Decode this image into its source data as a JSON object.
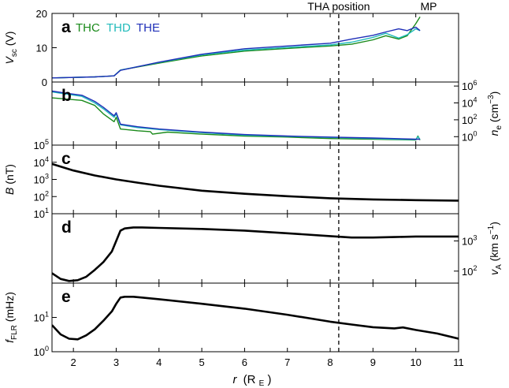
{
  "chart_data": {
    "type": "line",
    "x_axis": {
      "label_prefix": "r",
      "label_unit": "(R",
      "label_unit_sub": "E",
      "label_unit_close": ")",
      "range": [
        1.5,
        11
      ],
      "ticks": [
        2,
        3,
        4,
        5,
        6,
        7,
        8,
        9,
        10,
        11
      ]
    },
    "annotations": {
      "tha_label": "THA position",
      "tha_r": 8.2,
      "mp_label": "MP",
      "mp_r": 10.3
    },
    "legend": [
      {
        "name": "THC",
        "color": "#1a8a1a"
      },
      {
        "name": "THD",
        "color": "#22bbbb"
      },
      {
        "name": "THE",
        "color": "#1f2fb8"
      }
    ],
    "panels": [
      {
        "letter": "a",
        "ylabel_main": "V",
        "ylabel_sub": "sc",
        "ylabel_rest": " (V)",
        "scale": "linear",
        "ylim": [
          0,
          20
        ],
        "left_ticks": [
          "0",
          "10",
          "20"
        ],
        "left_tick_values": [
          0,
          10,
          20
        ],
        "series": [
          {
            "name": "THC",
            "color": "#1a8a1a",
            "x": [
              1.5,
              2.5,
              2.95,
              3.1,
              4,
              5,
              6,
              7,
              8,
              8.5,
              9,
              9.3,
              9.6,
              9.8,
              10,
              10.1
            ],
            "y": [
              1.2,
              1.5,
              1.8,
              3.5,
              5.5,
              7.6,
              9,
              9.8,
              10.5,
              11,
              12.3,
              13.5,
              12.5,
              13.5,
              17,
              19
            ]
          },
          {
            "name": "THD",
            "color": "#22bbbb",
            "x": [
              1.5,
              2.5,
              2.95,
              3.1,
              4,
              5,
              6,
              7,
              8,
              8.5,
              9,
              9.3,
              9.6,
              9.8,
              10,
              10.1
            ],
            "y": [
              1.2,
              1.5,
              1.8,
              3.5,
              5.7,
              7.9,
              9.3,
              10.1,
              10.8,
              11.6,
              13,
              14.2,
              12.8,
              13.8,
              15.5,
              15
            ]
          },
          {
            "name": "THE",
            "color": "#1f2fb8",
            "x": [
              1.5,
              2.5,
              2.95,
              3.1,
              4,
              5,
              6,
              7,
              8,
              8.5,
              9,
              9.3,
              9.6,
              9.8,
              10,
              10.1
            ],
            "y": [
              1.2,
              1.5,
              1.8,
              3.4,
              5.8,
              8.1,
              9.7,
              10.5,
              11.3,
              12.5,
              13.6,
              14.6,
              15.5,
              15,
              16,
              15
            ]
          }
        ]
      },
      {
        "letter": "b",
        "ylabel_right_main": "n",
        "ylabel_right_sub": "e",
        "ylabel_right_rest": " (cm",
        "ylabel_right_sup": "−3",
        "ylabel_right_close": ")",
        "scale": "log",
        "ylim": [
          0.1,
          3000000
        ],
        "right_ticks": [
          {
            "value": 1,
            "base": "10",
            "exp": "0"
          },
          {
            "value": 100,
            "base": "10",
            "exp": "2"
          },
          {
            "value": 10000,
            "base": "10",
            "exp": "4"
          },
          {
            "value": 1000000,
            "base": "10",
            "exp": "6"
          }
        ],
        "series": [
          {
            "name": "THC",
            "color": "#1a8a1a",
            "x": [
              1.5,
              1.8,
              2.2,
              2.5,
              2.7,
              2.95,
              3.0,
              3.1,
              3.5,
              3.8,
              3.85,
              4.2,
              5,
              6,
              7,
              8,
              9,
              9.5,
              10,
              10.05,
              10.1
            ],
            "y": [
              40000,
              30000,
              20000,
              5000,
              500,
              60,
              200,
              8,
              5,
              4,
              2,
              3.5,
              2,
              1.2,
              0.9,
              0.6,
              0.5,
              0.45,
              0.4,
              1.2,
              0.4
            ]
          },
          {
            "name": "THD",
            "color": "#22bbbb",
            "x": [
              1.5,
              1.8,
              2.2,
              2.5,
              2.7,
              2.95,
              3.0,
              3.1,
              3.5,
              4,
              5,
              6,
              7,
              8,
              9,
              9.5,
              10,
              10.05,
              10.1
            ],
            "y": [
              200000,
              120000,
              60000,
              10000,
              2000,
              200,
              500,
              25,
              12,
              7,
              3,
              1.5,
              1.1,
              0.8,
              0.6,
              0.5,
              0.45,
              1,
              0.45
            ]
          },
          {
            "name": "THE",
            "color": "#1f2fb8",
            "x": [
              1.5,
              1.8,
              2.2,
              2.5,
              2.7,
              2.95,
              3.0,
              3.1,
              3.5,
              4,
              5,
              6,
              7,
              8,
              9,
              9.5,
              10,
              10.1
            ],
            "y": [
              250000,
              150000,
              80000,
              15000,
              3000,
              300,
              700,
              30,
              15,
              8,
              3.5,
              1.8,
              1.2,
              0.9,
              0.7,
              0.6,
              0.5,
              0.5
            ]
          }
        ]
      },
      {
        "letter": "c",
        "ylabel_main": "B",
        "ylabel_rest": " (nT)",
        "scale": "log",
        "ylim": [
          10,
          100000
        ],
        "left_ticks": [
          {
            "value": 10,
            "base": "10",
            "exp": "1"
          },
          {
            "value": 100,
            "base": "10",
            "exp": "2"
          },
          {
            "value": 1000,
            "base": "10",
            "exp": "3"
          },
          {
            "value": 10000,
            "base": "10",
            "exp": "4"
          },
          {
            "value": 100000,
            "base": "10",
            "exp": "5"
          }
        ],
        "series": [
          {
            "name": "B",
            "color": "#000000",
            "x": [
              1.5,
              2,
              2.5,
              3,
              3.5,
              4,
              5,
              6,
              7,
              8,
              9,
              10,
              11
            ],
            "y": [
              8000,
              3300,
              1700,
              1000,
              650,
              430,
              220,
              145,
              105,
              80,
              68,
              62,
              58
            ]
          }
        ]
      },
      {
        "letter": "d",
        "ylabel_right_main": "v",
        "ylabel_right_sub": "A",
        "ylabel_right_rest": " (km s",
        "ylabel_right_sup": "−1",
        "ylabel_right_close": ")",
        "scale": "log",
        "ylim": [
          40,
          8000
        ],
        "right_ticks": [
          {
            "value": 100,
            "base": "10",
            "exp": "2"
          },
          {
            "value": 1000,
            "base": "10",
            "exp": "3"
          }
        ],
        "series": [
          {
            "name": "vA",
            "color": "#000000",
            "x": [
              1.5,
              1.7,
              1.9,
              2.1,
              2.3,
              2.5,
              2.7,
              2.9,
              3.0,
              3.1,
              3.2,
              3.4,
              3.6,
              4,
              5,
              6,
              7,
              8,
              8.5,
              9,
              9.5,
              10,
              10.5,
              11
            ],
            "y": [
              85,
              55,
              47,
              50,
              65,
              110,
              200,
              450,
              1000,
              2200,
              2600,
              2800,
              2800,
              2700,
              2500,
              2200,
              1800,
              1450,
              1300,
              1300,
              1350,
              1400,
              1400,
              1400
            ]
          }
        ]
      },
      {
        "letter": "e",
        "ylabel_main": "f",
        "ylabel_sub": "FLR",
        "ylabel_rest": " (mHz)",
        "scale": "log",
        "ylim": [
          1,
          100
        ],
        "left_ticks": [
          {
            "value": 1,
            "base": "10",
            "exp": "0"
          },
          {
            "value": 10,
            "base": "10",
            "exp": "1"
          }
        ],
        "series": [
          {
            "name": "fFLR",
            "color": "#000000",
            "x": [
              1.5,
              1.7,
              1.9,
              2.1,
              2.3,
              2.5,
              2.7,
              2.9,
              3.0,
              3.1,
              3.2,
              3.4,
              3.6,
              4,
              5,
              6,
              7,
              8,
              8.5,
              9,
              9.5,
              9.7,
              10,
              10.5,
              11
            ],
            "y": [
              6,
              3.2,
              2.4,
              2.3,
              3,
              4.5,
              8,
              15,
              25,
              38,
              40,
              40,
              38,
              34,
              25,
              18,
              12,
              7.5,
              6.2,
              5.2,
              4.8,
              5.1,
              4.3,
              3.4,
              2.4
            ]
          }
        ]
      }
    ]
  }
}
